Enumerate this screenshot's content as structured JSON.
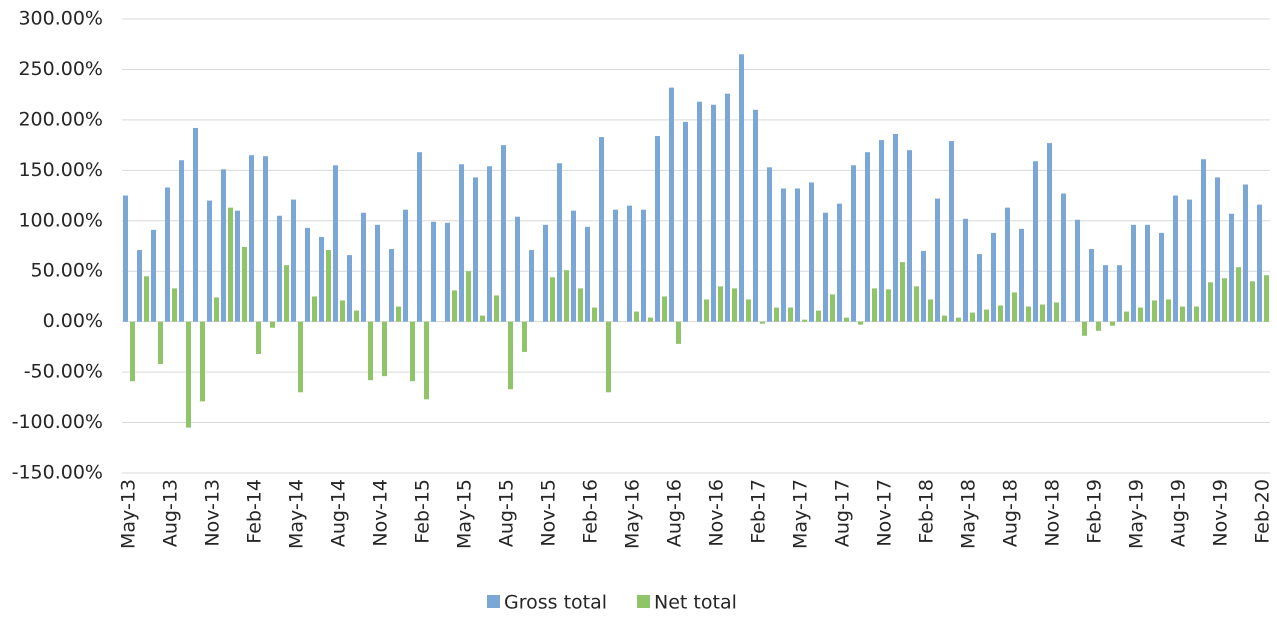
{
  "chart_data": {
    "type": "bar",
    "categories": [
      "May-13",
      null,
      null,
      "Aug-13",
      null,
      null,
      "Nov-13",
      null,
      null,
      "Feb-14",
      null,
      null,
      "May-14",
      null,
      null,
      "Aug-14",
      null,
      null,
      "Nov-14",
      null,
      null,
      "Feb-15",
      null,
      null,
      "May-15",
      null,
      null,
      "Aug-15",
      null,
      null,
      "Nov-15",
      null,
      null,
      "Feb-16",
      null,
      null,
      "May-16",
      null,
      null,
      "Aug-16",
      null,
      null,
      "Nov-16",
      null,
      null,
      "Feb-17",
      null,
      null,
      "May-17",
      null,
      null,
      "Aug-17",
      null,
      null,
      "Nov-17",
      null,
      null,
      "Feb-18",
      null,
      null,
      "May-18",
      null,
      null,
      "Aug-18",
      null,
      null,
      "Nov-18",
      null,
      null,
      "Feb-19",
      null,
      null,
      "May-19",
      null,
      null,
      "Aug-19",
      null,
      null,
      "Nov-19",
      null,
      null,
      "Feb-20"
    ],
    "series": [
      {
        "name": "Gross total",
        "color": "#7ba7d7",
        "values": [
          125,
          71,
          91,
          133,
          160,
          192,
          120,
          151,
          110,
          165,
          164,
          105,
          121,
          93,
          84,
          155,
          66,
          108,
          96,
          72,
          111,
          168,
          99,
          98,
          156,
          143,
          154,
          175,
          104,
          71,
          96,
          157,
          110,
          94,
          183,
          111,
          115,
          111,
          184,
          232,
          198,
          218,
          215,
          226,
          265,
          210,
          153,
          132,
          132,
          138,
          108,
          117,
          155,
          168,
          180,
          186,
          170,
          70,
          122,
          179,
          102,
          67,
          88,
          113,
          92,
          159,
          177,
          127,
          101,
          72,
          56,
          56,
          96,
          96,
          88,
          125,
          121,
          161,
          143,
          107,
          136,
          116
        ]
      },
      {
        "name": "Net total",
        "color": "#8fc468",
        "values": [
          -59,
          45,
          -42,
          33,
          -105,
          -79,
          24,
          113,
          74,
          -32,
          -6,
          56,
          -70,
          25,
          71,
          21,
          11,
          -58,
          -54,
          15,
          -59,
          -77,
          0,
          31,
          50,
          6,
          26,
          -67,
          -30,
          0,
          44,
          51,
          33,
          14,
          -70,
          0,
          10,
          4,
          25,
          -22,
          0,
          22,
          35,
          33,
          22,
          -2,
          14,
          14,
          2,
          11,
          27,
          4,
          -3,
          33,
          32,
          59,
          35,
          22,
          6,
          4,
          9,
          12,
          16,
          29,
          15,
          17,
          19,
          0,
          -14,
          -9,
          -4,
          10,
          14,
          21,
          22,
          15,
          15,
          39,
          43,
          54,
          40,
          46
        ]
      }
    ],
    "ylim": [
      -150,
      300
    ],
    "yticks": [
      {
        "value": -150,
        "label": "-150.00%"
      },
      {
        "value": -100,
        "label": "-100.00%"
      },
      {
        "value": -50,
        "label": "-50.00%"
      },
      {
        "value": 0,
        "label": "0.00%"
      },
      {
        "value": 50,
        "label": "50.00%"
      },
      {
        "value": 100,
        "label": "100.00%"
      },
      {
        "value": 150,
        "label": "150.00%"
      },
      {
        "value": 200,
        "label": "200.00%"
      },
      {
        "value": 250,
        "label": "250.00%"
      },
      {
        "value": 300,
        "label": "300.00%"
      }
    ],
    "grid": true,
    "legend": "bottom"
  }
}
